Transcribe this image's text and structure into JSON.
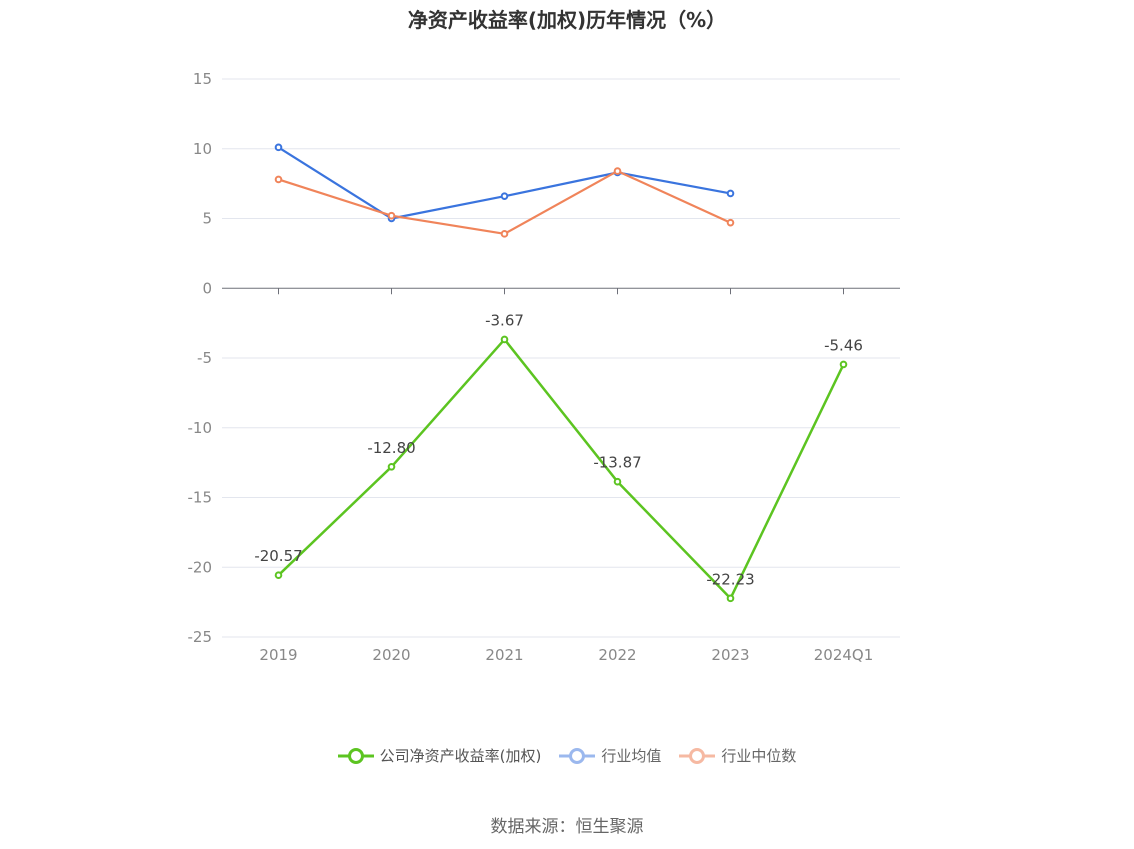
{
  "chart_data": {
    "type": "line",
    "title": "净资产收益率(加权)历年情况（%）",
    "categories": [
      "2019",
      "2020",
      "2021",
      "2022",
      "2023",
      "2024Q1"
    ],
    "ylim": [
      -25,
      15
    ],
    "yticks": [
      15,
      10,
      5,
      0,
      -5,
      -10,
      -15,
      -20,
      -25
    ],
    "grid": true,
    "legend_position": "bottom",
    "series": [
      {
        "name": "公司净资产收益率(加权)",
        "color": "#5cc421",
        "values": [
          -20.57,
          -12.8,
          -3.67,
          -13.87,
          -22.23,
          -5.46
        ],
        "labels": [
          "-20.57",
          "-12.80",
          "-3.67",
          "-13.87",
          "-22.23",
          "-5.46"
        ],
        "show_labels": true
      },
      {
        "name": "行业均值",
        "color": "#3a74de",
        "values": [
          10.1,
          5.0,
          6.6,
          8.3,
          6.8,
          null
        ],
        "show_labels": false
      },
      {
        "name": "行业中位数",
        "color": "#f0845a",
        "values": [
          7.8,
          5.2,
          3.9,
          8.4,
          4.7,
          null
        ],
        "show_labels": false
      }
    ]
  },
  "legend": {
    "items": [
      {
        "label": "公司净资产收益率(加权)",
        "color": "#5cc421"
      },
      {
        "label": "行业均值",
        "color": "#9bb8ee"
      },
      {
        "label": "行业中位数",
        "color": "#f6b9a2"
      }
    ]
  },
  "source": "数据来源：恒生聚源"
}
